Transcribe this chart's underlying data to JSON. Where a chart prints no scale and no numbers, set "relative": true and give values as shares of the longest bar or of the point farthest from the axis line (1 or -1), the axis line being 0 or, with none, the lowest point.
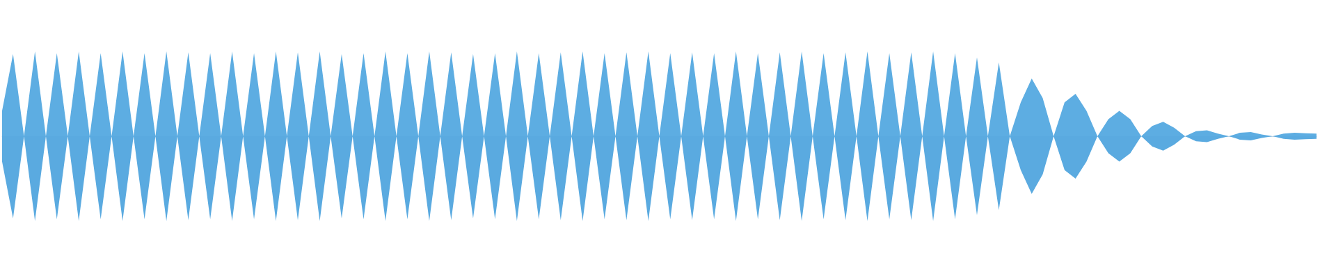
{
  "chart_data": {
    "type": "area",
    "relative": true,
    "grid": false,
    "categories": [
      null,
      null,
      null,
      null,
      null,
      null,
      null,
      null,
      null,
      null,
      null,
      null,
      null,
      null,
      null,
      null,
      null,
      null,
      null,
      null,
      null,
      null,
      null,
      null,
      null,
      null,
      null,
      null,
      null,
      null,
      null,
      null,
      null,
      null,
      null,
      null,
      null,
      null,
      null,
      null,
      null,
      null,
      null,
      null,
      null,
      null,
      null,
      null,
      null,
      null,
      null,
      null,
      null,
      null,
      null,
      null,
      null,
      null,
      null,
      null,
      null,
      null,
      null,
      null,
      null,
      null,
      null,
      null,
      null,
      null,
      null,
      null,
      null,
      null,
      null,
      null,
      null,
      null,
      null,
      null,
      null,
      null,
      null,
      null,
      null,
      null,
      null,
      null,
      null,
      null,
      null,
      null,
      null,
      null,
      null,
      null,
      null,
      null,
      null,
      null,
      null,
      null,
      null,
      null,
      null,
      null,
      null,
      null,
      null,
      null,
      null,
      null,
      null,
      null,
      null,
      null,
      null,
      null,
      null,
      null,
      null
    ],
    "series": [
      {
        "color": "#5dade2",
        "values": [
          0.3,
          0.97,
          0,
          1,
          0,
          0.98,
          0,
          1,
          0,
          0.98,
          0,
          1,
          0,
          0.98,
          0,
          1,
          0,
          0.99,
          0,
          0.98,
          0,
          1,
          0,
          0.98,
          0,
          1,
          0,
          0.99,
          0,
          1,
          0,
          0.97,
          0,
          0.98,
          0,
          1,
          0,
          0.98,
          0,
          1,
          0,
          0.99,
          0,
          0.97,
          0,
          0.98,
          0,
          1,
          0,
          0.98,
          0,
          0.99,
          0,
          1,
          0,
          0.98,
          0,
          0.99,
          0,
          1,
          0,
          0.98,
          0,
          0.99,
          0,
          0.98,
          0,
          1,
          0,
          0.98,
          0,
          0.99,
          0,
          1,
          0,
          0.98,
          0,
          0.99,
          0,
          1,
          0,
          0.98,
          0,
          0.99,
          0,
          1,
          0,
          0.98,
          0,
          0.93,
          0,
          0.87,
          0,
          0.4,
          0.68,
          0.45,
          0,
          0.4,
          0.5,
          0.3,
          0,
          0.2,
          0.3,
          0.2,
          0,
          0.12,
          0.17,
          0.1,
          0,
          0.06,
          0.07,
          0.03,
          0,
          0.04,
          0.05,
          0.02,
          0,
          0.03,
          0.04,
          0.035,
          0.03
        ]
      },
      {
        "color": "#5aaae0",
        "values": [
          -0.3,
          -0.97,
          0,
          -1,
          0,
          -0.98,
          0,
          -1,
          0,
          -0.98,
          0,
          -1,
          0,
          -0.98,
          0,
          -1,
          0,
          -0.99,
          0,
          -0.98,
          0,
          -1,
          0,
          -0.98,
          0,
          -1,
          0,
          -0.99,
          0,
          -1,
          0,
          -0.97,
          0,
          -0.98,
          0,
          -1,
          0,
          -0.98,
          0,
          -1,
          0,
          -0.99,
          0,
          -0.97,
          0,
          -0.98,
          0,
          -1,
          0,
          -0.98,
          0,
          -0.99,
          0,
          -1,
          0,
          -0.98,
          0,
          -0.99,
          0,
          -1,
          0,
          -0.98,
          0,
          -0.99,
          0,
          -0.98,
          0,
          -1,
          0,
          -0.98,
          0,
          -0.99,
          0,
          -1,
          0,
          -0.98,
          0,
          -0.99,
          0,
          -1,
          0,
          -0.98,
          0,
          -0.99,
          0,
          -1,
          0,
          -0.98,
          0,
          -0.93,
          0,
          -0.87,
          0,
          -0.4,
          -0.68,
          -0.45,
          0,
          -0.4,
          -0.5,
          -0.3,
          0,
          -0.2,
          -0.3,
          -0.2,
          0,
          -0.12,
          -0.17,
          -0.1,
          0,
          -0.06,
          -0.07,
          -0.03,
          0,
          -0.04,
          -0.05,
          -0.02,
          0,
          -0.03,
          -0.04,
          -0.035,
          -0.03
        ]
      }
    ]
  }
}
